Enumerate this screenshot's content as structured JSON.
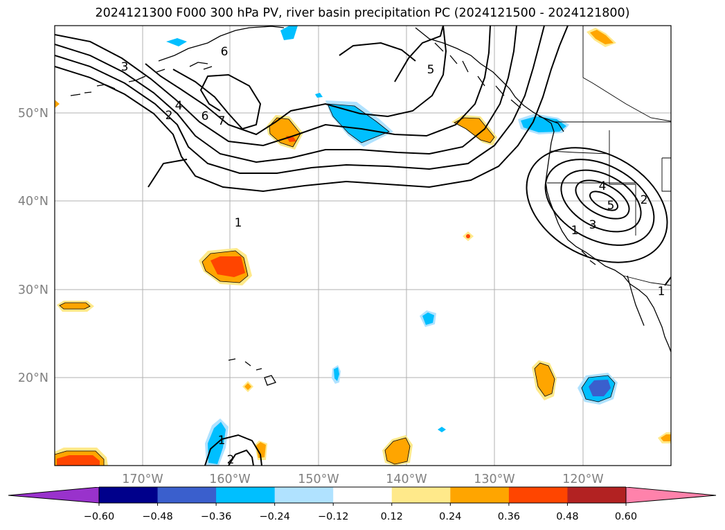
{
  "map": {
    "title": "2024121300 F000 300 hPa PV, river basin precipitation PC (2024121500 - 2024121800)",
    "lat_labels": [
      "50°N",
      "40°N",
      "30°N",
      "20°N"
    ],
    "lon_labels": [
      "170°W",
      "160°W",
      "150°W",
      "140°W",
      "130°W",
      "120°W"
    ],
    "contour_labels": [
      "3",
      "6",
      "2",
      "4",
      "6",
      "7",
      "5",
      "1",
      "4",
      "5",
      "3",
      "2",
      "1",
      "1",
      "1",
      "2"
    ]
  },
  "colorbar": {
    "tick_labels": [
      "−0.60",
      "−0.48",
      "−0.36",
      "−0.24",
      "−0.12",
      "0.12",
      "0.24",
      "0.36",
      "0.48",
      "0.60"
    ],
    "colors": [
      "#9932cc",
      "#00008b",
      "#3a5fcd",
      "#00bfff",
      "#b0e2ff",
      "#ffffff",
      "#ffe98a",
      "#ffa500",
      "#ff4500",
      "#b22222",
      "#ff82ab"
    ]
  }
}
